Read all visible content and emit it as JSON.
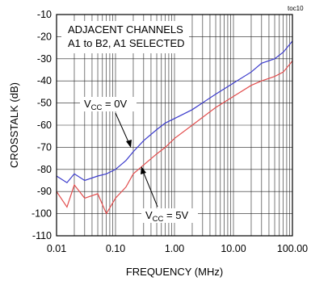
{
  "figure_id": "toc10",
  "chart_data": {
    "type": "line",
    "xlabel": "FREQUENCY (MHz)",
    "ylabel": "CROSSTALK (dB)",
    "xscale": "log",
    "xlim": [
      0.01,
      100
    ],
    "ylim": [
      -110,
      -10
    ],
    "x_ticks": [
      0.01,
      0.1,
      1,
      10,
      100
    ],
    "x_tick_labels": [
      "0.01",
      "0.10",
      "1.00",
      "10.00",
      "100.00"
    ],
    "y_ticks": [
      -10,
      -20,
      -30,
      -40,
      -50,
      -60,
      -70,
      -80,
      -90,
      -100,
      -110
    ],
    "y_tick_labels": [
      "-10",
      "-20",
      "-30",
      "-40",
      "-50",
      "-60",
      "-70",
      "-80",
      "-90",
      "-100",
      "-110"
    ],
    "grid": true,
    "annotation": {
      "line1": "ADJACENT CHANNELS",
      "line2": "A1 to B2, A1 SELECTED"
    },
    "series": [
      {
        "label_main": "V",
        "label_sub": "CC",
        "label_value": " = 0V",
        "color": "#3a3acc",
        "x": [
          0.01,
          0.015,
          0.02,
          0.03,
          0.05,
          0.07,
          0.1,
          0.15,
          0.2,
          0.3,
          0.5,
          0.7,
          1,
          2,
          5,
          10,
          20,
          30,
          50,
          70,
          100
        ],
        "y": [
          -83,
          -86,
          -82,
          -85,
          -83,
          -82,
          -80,
          -76,
          -72,
          -67,
          -62,
          -59,
          -57,
          -53,
          -46,
          -41,
          -36,
          -32,
          -30,
          -27,
          -22
        ]
      },
      {
        "label_main": "V",
        "label_sub": "CC",
        "label_value": " = 5V",
        "color": "#e24c4c",
        "x": [
          0.01,
          0.015,
          0.02,
          0.03,
          0.05,
          0.07,
          0.1,
          0.15,
          0.2,
          0.3,
          0.5,
          0.7,
          1,
          2,
          5,
          10,
          20,
          30,
          50,
          70,
          100
        ],
        "y": [
          -90,
          -97,
          -87,
          -93,
          -91,
          -100,
          -93,
          -88,
          -82,
          -78,
          -73,
          -70,
          -66,
          -60,
          -52,
          -47,
          -42,
          -40,
          -38,
          -36,
          -31
        ]
      }
    ]
  }
}
